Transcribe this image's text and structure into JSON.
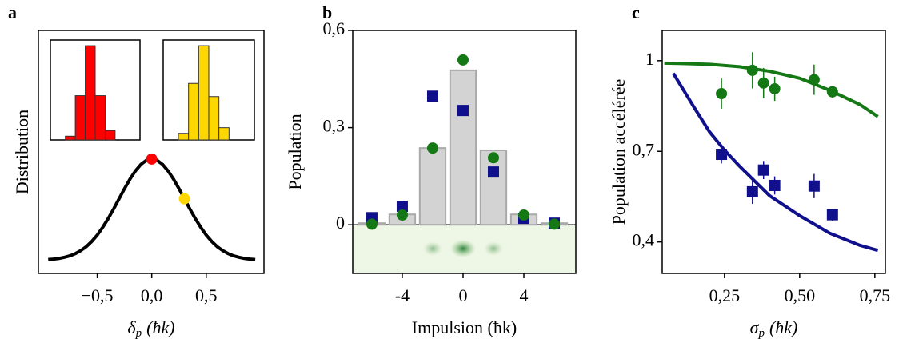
{
  "chart_data": [
    {
      "type": "line",
      "panel": "a",
      "xlabel": {
        "main": "δ",
        "sub": "p",
        "rest": "(ħk)"
      },
      "ylabel": "Distribution",
      "xlim": [
        -1.04,
        1.03
      ],
      "ylim": [
        -0.13,
        2.27
      ],
      "xticks": [
        {
          "value": -0.5,
          "label": "−0,5"
        },
        {
          "value": 0,
          "label": "0,0"
        },
        {
          "value": 0.5,
          "label": "0,5"
        }
      ],
      "x": [
        -0.95,
        -0.9,
        -0.85,
        -0.8,
        -0.75,
        -0.7,
        -0.65,
        -0.6,
        -0.55,
        -0.5,
        -0.45,
        -0.4,
        -0.35,
        -0.3,
        -0.25,
        -0.2,
        -0.15,
        -0.1,
        -0.05,
        0,
        0.05,
        0.1,
        0.15,
        0.2,
        0.25,
        0.3,
        0.35,
        0.4,
        0.45,
        0.5,
        0.55,
        0.6,
        0.65,
        0.7,
        0.75,
        0.8,
        0.85,
        0.9,
        0.95
      ],
      "series": [
        {
          "type": "line",
          "color": "#000000",
          "values": [
            0.007,
            0.011,
            0.018,
            0.029,
            0.044,
            0.066,
            0.096,
            0.135,
            0.186,
            0.249,
            0.325,
            0.411,
            0.506,
            0.607,
            0.707,
            0.801,
            0.882,
            0.946,
            0.986,
            1,
            0.986,
            0.946,
            0.882,
            0.801,
            0.707,
            0.607,
            0.506,
            0.411,
            0.325,
            0.249,
            0.186,
            0.135,
            0.096,
            0.066,
            0.044,
            0.029,
            0.018,
            0.011,
            0.007
          ]
        },
        {
          "type": "scatter",
          "marker": "circle",
          "color": "#ff0000",
          "x": [
            0
          ],
          "values": [
            1
          ]
        },
        {
          "type": "scatter",
          "marker": "circle",
          "color": "#ffd700",
          "x": [
            0.3
          ],
          "values": [
            0.607
          ]
        }
      ],
      "insets": [
        {
          "type": "histogram",
          "color": "#ff0000",
          "xlim": [
            0,
            9
          ],
          "ylim": [
            0,
            1.06
          ],
          "bins": [
            1.5,
            2.5,
            3.5,
            4.5,
            5.5,
            6.5
          ],
          "counts": [
            0.04,
            0.47,
            1,
            0.47,
            0.1
          ]
        },
        {
          "type": "histogram",
          "color": "#ffd700",
          "xlim": [
            0,
            9
          ],
          "ylim": [
            0,
            1.06
          ],
          "bins": [
            1.5,
            2.5,
            3.5,
            4.5,
            5.5,
            6.5
          ],
          "counts": [
            0.07,
            0.6,
            1,
            0.46,
            0.13
          ]
        }
      ]
    },
    {
      "type": "bar",
      "panel": "b",
      "xlabel": "Impulsion (ħk)",
      "ylabel": "Population",
      "xlim": [
        -7.26,
        7.42
      ],
      "ylim": [
        -0.15,
        0.6
      ],
      "xticks": [
        -4,
        0,
        4
      ],
      "yticks": [
        0,
        {
          "value": 0.3,
          "label": "0,3"
        },
        {
          "value": 0.6,
          "label": "0,6"
        }
      ],
      "x": [
        -6,
        -4,
        -2,
        0,
        2,
        4,
        6
      ],
      "series": [
        {
          "type": "bar",
          "color": "#d3d3d3",
          "values": [
            0.005,
            0.032,
            0.237,
            0.477,
            0.23,
            0.032,
            0.005
          ]
        },
        {
          "type": "scatter",
          "marker": "square",
          "color": "#10108c",
          "values": [
            0.022,
            0.057,
            0.397,
            0.353,
            0.163,
            0.02,
            0.005
          ]
        },
        {
          "type": "scatter",
          "marker": "circle",
          "color": "#147814",
          "values": [
            0.002,
            0.03,
            0.237,
            0.509,
            0.207,
            0.03,
            0.002
          ]
        }
      ]
    },
    {
      "type": "scatter",
      "panel": "c",
      "xlabel": {
        "main": "σ",
        "sub": "p",
        "rest": "(ħk)"
      },
      "ylabel": "Population accélérée",
      "xlim": [
        0.043,
        0.785
      ],
      "ylim": [
        0.296,
        1.1
      ],
      "xticks": [
        {
          "value": 0.25,
          "label": "0,25"
        },
        {
          "value": 0.5,
          "label": "0,50"
        },
        {
          "value": 0.75,
          "label": "0,75"
        }
      ],
      "yticks": [
        {
          "value": 0.4,
          "label": "0,4"
        },
        {
          "value": 0.7,
          "label": "0,7"
        },
        1
      ],
      "series": [
        {
          "type": "line",
          "color": "#147814",
          "x": [
            0.05,
            0.1,
            0.2,
            0.3,
            0.4,
            0.5,
            0.6,
            0.7,
            0.76
          ],
          "values": [
            0.992,
            0.991,
            0.988,
            0.98,
            0.965,
            0.942,
            0.902,
            0.855,
            0.815
          ]
        },
        {
          "type": "line",
          "color": "#10108c",
          "x": [
            0.08,
            0.15,
            0.2,
            0.25,
            0.3,
            0.4,
            0.5,
            0.6,
            0.7,
            0.76
          ],
          "values": [
            0.958,
            0.844,
            0.765,
            0.704,
            0.651,
            0.553,
            0.487,
            0.429,
            0.389,
            0.372
          ]
        },
        {
          "type": "scatter",
          "marker": "circle",
          "color": "#147814",
          "x": [
            0.24,
            0.343,
            0.38,
            0.417,
            0.548,
            0.609
          ],
          "values": [
            0.891,
            0.968,
            0.926,
            0.907,
            0.937,
            0.897
          ],
          "errors": [
            0.05,
            0.06,
            0.05,
            0.04,
            0.05,
            0.02
          ]
        },
        {
          "type": "scatter",
          "marker": "square",
          "color": "#10108c",
          "x": [
            0.24,
            0.343,
            0.38,
            0.417,
            0.548,
            0.609
          ],
          "values": [
            0.69,
            0.566,
            0.638,
            0.587,
            0.585,
            0.49
          ],
          "errors": [
            0.03,
            0.04,
            0.03,
            0.03,
            0.04,
            0.02
          ]
        }
      ]
    }
  ]
}
